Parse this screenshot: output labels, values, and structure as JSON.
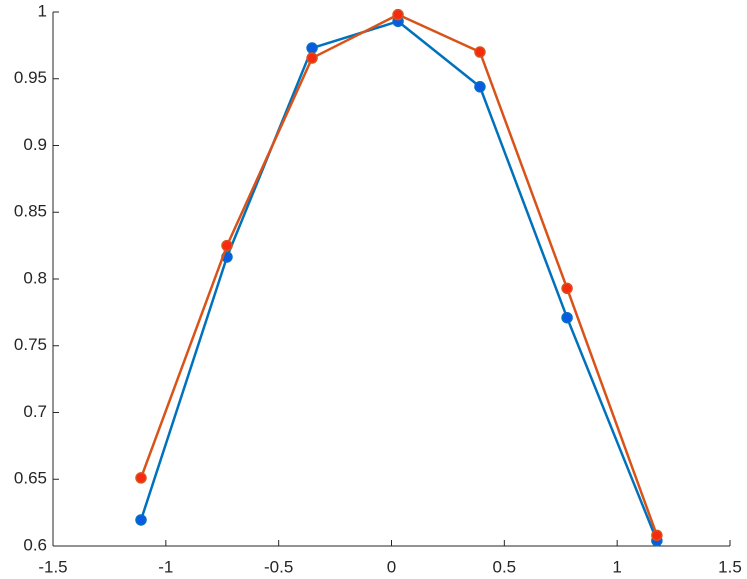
{
  "chart_data": {
    "type": "line",
    "x": [
      -1.11,
      -0.729,
      -0.352,
      0.029,
      0.392,
      0.778,
      1.176
    ],
    "series": [
      {
        "color": "#0072bd",
        "marker_color": "#0a5ae6",
        "values": [
          0.6195,
          0.8165,
          0.973,
          0.993,
          0.944,
          0.771,
          0.604
        ]
      },
      {
        "color": "#d95319",
        "marker_color": "#f52a10",
        "values": [
          0.651,
          0.825,
          0.9655,
          0.998,
          0.97,
          0.793,
          0.608
        ]
      }
    ],
    "xlim": [
      -1.5,
      1.5
    ],
    "xticks": [
      -1.5,
      -1,
      -0.5,
      0,
      0.5,
      1,
      1.5
    ],
    "ylim": [
      0.6,
      1
    ],
    "yticks": [
      0.6,
      0.65,
      0.7,
      0.75,
      0.8,
      0.85,
      0.9,
      0.95,
      1
    ],
    "grid": false
  }
}
